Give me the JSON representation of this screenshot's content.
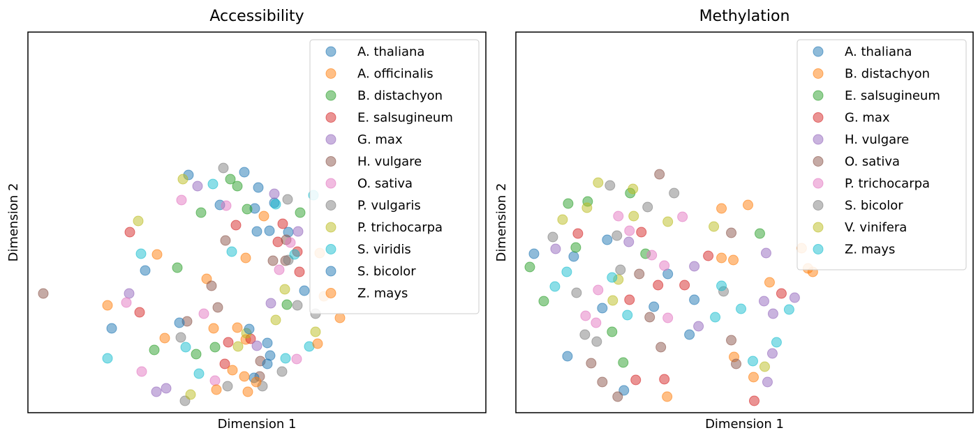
{
  "chart_data": [
    {
      "type": "scatter",
      "title": "Accessibility",
      "x_label": "Dimension 1",
      "y_label": "Dimension 2",
      "xlim": [
        0,
        656
      ],
      "ylim": [
        0,
        546
      ],
      "legend": "upper right",
      "series": [
        {
          "name": "A. thaliana",
          "color": "#1f77b4",
          "x": [
            230,
            310,
            330,
            275,
            325,
            353,
            328,
            346,
            373
          ],
          "y": [
            341,
            345,
            323,
            298,
            293,
            301,
            260,
            261,
            259
          ]
        },
        {
          "name": "A. officinalis",
          "color": "#ff7f0e",
          "x": [
            185,
            312,
            338,
            256,
            114,
            196,
            266,
            300,
            312
          ],
          "y": [
            227,
            222,
            282,
            192,
            154,
            107,
            121,
            122,
            105
          ]
        },
        {
          "name": "B. distachyon",
          "color": "#2ca02c",
          "x": [
            290,
            300,
            248,
            314,
            390,
            214,
            371,
            181,
            241,
            268
          ],
          "y": [
            335,
            325,
            287,
            292,
            287,
            208,
            155,
            90,
            84,
            94
          ]
        },
        {
          "name": "E. salsugineum",
          "color": "#d62728",
          "x": [
            146,
            298,
            365,
            358,
            386,
            389,
            160,
            287,
            319,
            282
          ],
          "y": [
            259,
            269,
            271,
            245,
            231,
            202,
            144,
            101,
            106,
            70
          ]
        },
        {
          "name": "G. max",
          "color": "#9467bd",
          "x": [
            243,
            353,
            387,
            145,
            348,
            328,
            184,
            198
          ],
          "y": [
            325,
            314,
            260,
            171,
            157,
            96,
            30,
            35
          ]
        },
        {
          "name": "H. vulgare",
          "color": "#8c564b",
          "x": [
            22,
            283,
            370,
            351,
            263,
            272,
            228,
            333,
            332,
            369
          ],
          "y": [
            171,
            247,
            248,
            218,
            182,
            151,
            131,
            74,
            52,
            218
          ]
        },
        {
          "name": "O. sativa",
          "color": "#e377c2",
          "x": [
            220,
            284,
            360,
            376,
            141,
            252,
            163,
            268,
            385
          ],
          "y": [
            305,
            297,
            205,
            244,
            158,
            142,
            59,
            46,
            77
          ]
        },
        {
          "name": "P. vulgaris",
          "color": "#7f7f7f",
          "x": [
            280,
            372,
            386,
            412,
            219,
            286,
            336,
            364,
            225,
            373
          ],
          "y": [
            351,
            306,
            154,
            142,
            108,
            38,
            38,
            59,
            17,
            219
          ]
        },
        {
          "name": "P. trichocarpa",
          "color": "#bcbd22",
          "x": [
            158,
            222,
            368,
            355,
            412,
            301,
            313,
            233
          ],
          "y": [
            275,
            335,
            177,
            133,
            116,
            95,
            114,
            26
          ]
        },
        {
          "name": "S. viridis",
          "color": "#17becf",
          "x": [
            265,
            355,
            292,
            162,
            382,
            114,
            226,
            245,
            369,
            403,
            409
          ],
          "y": [
            328,
            299,
            231,
            228,
            227,
            78,
            94,
            56,
            78,
            95,
            312
          ]
        },
        {
          "name": "S. bicolor",
          "color": "#1f77b4",
          "x": [
            168,
            120,
            217,
            317,
            343,
            347,
            343,
            324,
            396
          ],
          "y": [
            204,
            121,
            129,
            120,
            100,
            82,
            70,
            50,
            175
          ]
        },
        {
          "name": "Z. mays",
          "color": "#ff7f0e",
          "x": [
            293,
            310,
            327,
            270,
            315,
            415,
            447,
            418,
            424
          ],
          "y": [
            61,
            52,
            44,
            33,
            30,
            99,
            136,
            229,
            167
          ]
        }
      ]
    },
    {
      "type": "scatter",
      "title": "Methylation",
      "x_label": "Dimension 1",
      "y_label": "Dimension 2",
      "xlim": [
        0,
        656
      ],
      "ylim": [
        0,
        546
      ],
      "legend": "upper right",
      "series": [
        {
          "name": "A. thaliana",
          "color": "#1f77b4",
          "x": [
            26,
            83,
            131,
            218,
            198,
            124,
            256,
            249,
            74,
            155
          ],
          "y": [
            228,
            224,
            248,
            199,
            152,
            150,
            162,
            112,
            81,
            32
          ]
        },
        {
          "name": "B. distachyon",
          "color": "#ff7f0e",
          "x": [
            295,
            333,
            295,
            312,
            364,
            410,
            419,
            426,
            313,
            341,
            217
          ],
          "y": [
            293,
            298,
            222,
            219,
            187,
            236,
            207,
            202,
            80,
            51,
            23
          ]
        },
        {
          "name": "E. salsugineum",
          "color": "#2ca02c",
          "x": [
            20,
            75,
            103,
            86,
            40,
            138,
            154,
            186,
            350,
            164
          ],
          "y": [
            209,
            300,
            303,
            237,
            160,
            116,
            72,
            228,
            257,
            315
          ]
        },
        {
          "name": "G. max",
          "color": "#d62728",
          "x": [
            89,
            180,
            276,
            204,
            242,
            163,
            381,
            172,
            213,
            342
          ],
          "y": [
            257,
            259,
            225,
            183,
            183,
            162,
            171,
            47,
            48,
            17
          ]
        },
        {
          "name": "H. vulgare",
          "color": "#9467bd",
          "x": [
            57,
            162,
            256,
            359,
            262,
            356,
            369,
            400,
            368,
            361
          ],
          "y": [
            235,
            245,
            210,
            229,
            124,
            160,
            142,
            165,
            85,
            44
          ]
        },
        {
          "name": "O. sativa",
          "color": "#8c564b",
          "x": [
            206,
            309,
            177,
            192,
            208,
            309,
            316,
            108,
            124,
            146
          ],
          "y": [
            342,
            258,
            199,
            137,
            94,
            104,
            70,
            71,
            44,
            23
          ]
        },
        {
          "name": "P. trichocarpa",
          "color": "#e377c2",
          "x": [
            147,
            239,
            163,
            195,
            213,
            118,
            100,
            115,
            218
          ],
          "y": [
            282,
            281,
            261,
            226,
            211,
            176,
            139,
            129,
            136
          ]
        },
        {
          "name": "S. bicolor",
          "color": "#7f7f7f",
          "x": [
            135,
            189,
            227,
            53,
            145,
            150,
            87,
            298,
            99,
            116
          ],
          "y": [
            326,
            295,
            315,
            252,
            254,
            205,
            172,
            174,
            112,
            102
          ]
        },
        {
          "name": "V. vinifera",
          "color": "#bcbd22",
          "x": [
            118,
            168,
            102,
            67,
            218,
            284,
            147,
            139,
            357,
            169
          ],
          "y": [
            330,
            321,
            294,
            277,
            274,
            267,
            191,
            161,
            66,
            282
          ]
        },
        {
          "name": "Z. mays",
          "color": "#17becf",
          "x": [
            73,
            56,
            138,
            160,
            295,
            323,
            286,
            392,
            374,
            340
          ],
          "y": [
            202,
            181,
            194,
            140,
            182,
            149,
            137,
            148,
            101,
            74
          ]
        }
      ]
    }
  ]
}
